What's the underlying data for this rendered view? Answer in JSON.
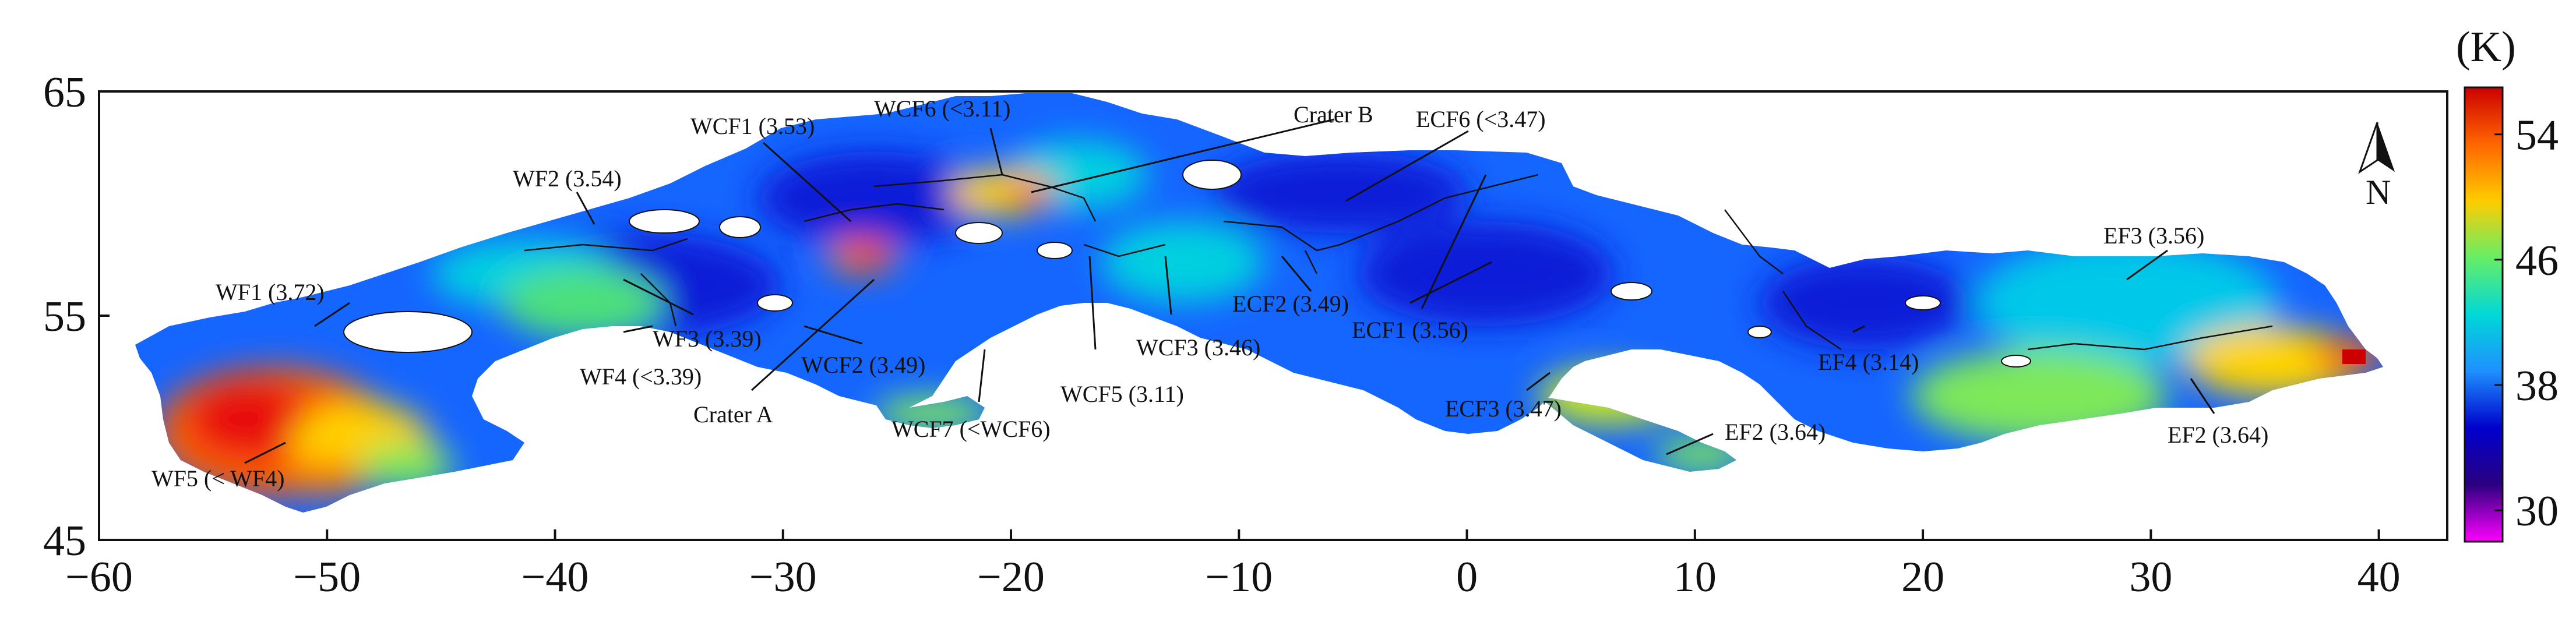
{
  "map": {
    "unit": "(K)",
    "north": "N",
    "x_ticks": [
      "-60",
      "-50",
      "-40",
      "-30",
      "-20",
      "-10",
      "0",
      "10",
      "20",
      "30",
      "40"
    ],
    "y_ticks": [
      "65",
      "55",
      "45"
    ],
    "x_range": [
      -60,
      43
    ],
    "y_range": [
      45,
      65
    ],
    "colorbar": {
      "ticks": [
        "54",
        "46",
        "38",
        "30"
      ],
      "range": [
        28,
        57
      ],
      "colors": [
        "#cc0000",
        "#ff6600",
        "#ffcc00",
        "#66ee66",
        "#00d8d8",
        "#1e90ff",
        "#0000cc",
        "#2b0080",
        "#ff00ff"
      ]
    },
    "labels": [
      {
        "id": "wcf1",
        "text": "WCF1 (3.53)"
      },
      {
        "id": "wcf6",
        "text": "WCF6 (<3.11)"
      },
      {
        "id": "crater-b",
        "text": "Crater B"
      },
      {
        "id": "ecf6",
        "text": "ECF6 (<3.47)"
      },
      {
        "id": "wf2",
        "text": "WF2 (3.54)"
      },
      {
        "id": "wf1",
        "text": "WF1 (3.72)"
      },
      {
        "id": "ef3",
        "text": "EF3 (3.56)"
      },
      {
        "id": "wf3",
        "text": "WF3 (3.39)"
      },
      {
        "id": "ecf2",
        "text": "ECF2 (3.49)"
      },
      {
        "id": "ecf1",
        "text": "ECF1 (3.56)"
      },
      {
        "id": "wcf2",
        "text": "WCF2 (3.49)"
      },
      {
        "id": "wcf3",
        "text": "WCF3 (3.46)"
      },
      {
        "id": "wf4",
        "text": "WF4 (<3.39)"
      },
      {
        "id": "ef4",
        "text": "EF4 (3.14)"
      },
      {
        "id": "crater-a",
        "text": "Crater A"
      },
      {
        "id": "wcf5",
        "text": "WCF5 (3.11)"
      },
      {
        "id": "ecf3",
        "text": "ECF3 (3.47)"
      },
      {
        "id": "ef2a",
        "text": "EF2 (3.64)"
      },
      {
        "id": "ef2b",
        "text": "EF2 (3.64)"
      },
      {
        "id": "wcf7",
        "text": "WCF7 (<WCF6)"
      },
      {
        "id": "wf5",
        "text": "WF5 (< WF4)"
      }
    ]
  }
}
